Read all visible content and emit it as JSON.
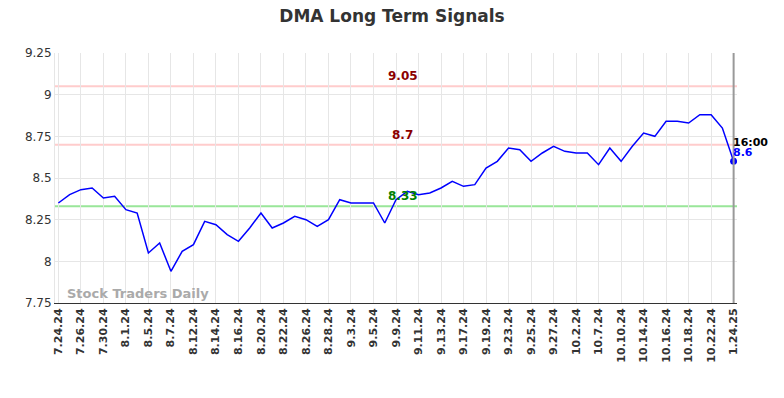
{
  "chart_data": {
    "type": "line",
    "title": "DMA Long Term Signals",
    "categories": [
      "7.24.24",
      null,
      "7.26.24",
      null,
      "7.30.24",
      null,
      "8.1.24",
      null,
      "8.5.24",
      null,
      "8.7.24",
      null,
      "8.12.24",
      null,
      "8.14.24",
      null,
      "8.16.24",
      null,
      "8.20.24",
      null,
      "8.22.24",
      null,
      "8.26.24",
      null,
      "8.28.24",
      null,
      "9.3.24",
      null,
      "9.5.24",
      null,
      "9.9.24",
      null,
      "9.11.24",
      null,
      "9.13.24",
      null,
      "9.17.24",
      null,
      "9.19.24",
      null,
      "9.23.24",
      null,
      "9.25.24",
      null,
      "9.27.24",
      null,
      "10.2.24",
      null,
      "10.7.24",
      null,
      "10.10.24",
      null,
      "10.14.24",
      null,
      "10.16.24",
      null,
      "10.18.24",
      null,
      "10.22.24",
      null,
      "1.24.25"
    ],
    "values": [
      8.35,
      8.4,
      8.43,
      8.44,
      8.38,
      8.39,
      8.31,
      8.29,
      8.05,
      8.11,
      7.94,
      8.06,
      8.1,
      8.24,
      8.22,
      8.16,
      8.12,
      8.2,
      8.29,
      8.2,
      8.23,
      8.27,
      8.25,
      8.21,
      8.25,
      8.37,
      8.35,
      8.35,
      8.35,
      8.23,
      8.37,
      8.42,
      8.4,
      8.41,
      8.44,
      8.48,
      8.45,
      8.46,
      8.56,
      8.6,
      8.68,
      8.67,
      8.6,
      8.65,
      8.69,
      8.66,
      8.65,
      8.65,
      8.58,
      8.68,
      8.6,
      8.69,
      8.77,
      8.75,
      8.84,
      8.84,
      8.83,
      8.88,
      8.88,
      8.8,
      8.6
    ],
    "color": "#0000ff",
    "ylim": [
      7.75,
      9.25
    ],
    "yticks": [
      7.75,
      8,
      8.25,
      8.5,
      8.75,
      9,
      9.25
    ],
    "grid": true,
    "levels": [
      {
        "value": 9.05,
        "color": "#ffcccc",
        "label_color": "#8b0000"
      },
      {
        "value": 8.7,
        "color": "#ffcccc",
        "label_color": "#8b0000"
      },
      {
        "value": 8.33,
        "color": "#99e699",
        "label_color": "#008000"
      }
    ],
    "end_label": "16:00",
    "watermark": "Stock Traders Daily"
  }
}
